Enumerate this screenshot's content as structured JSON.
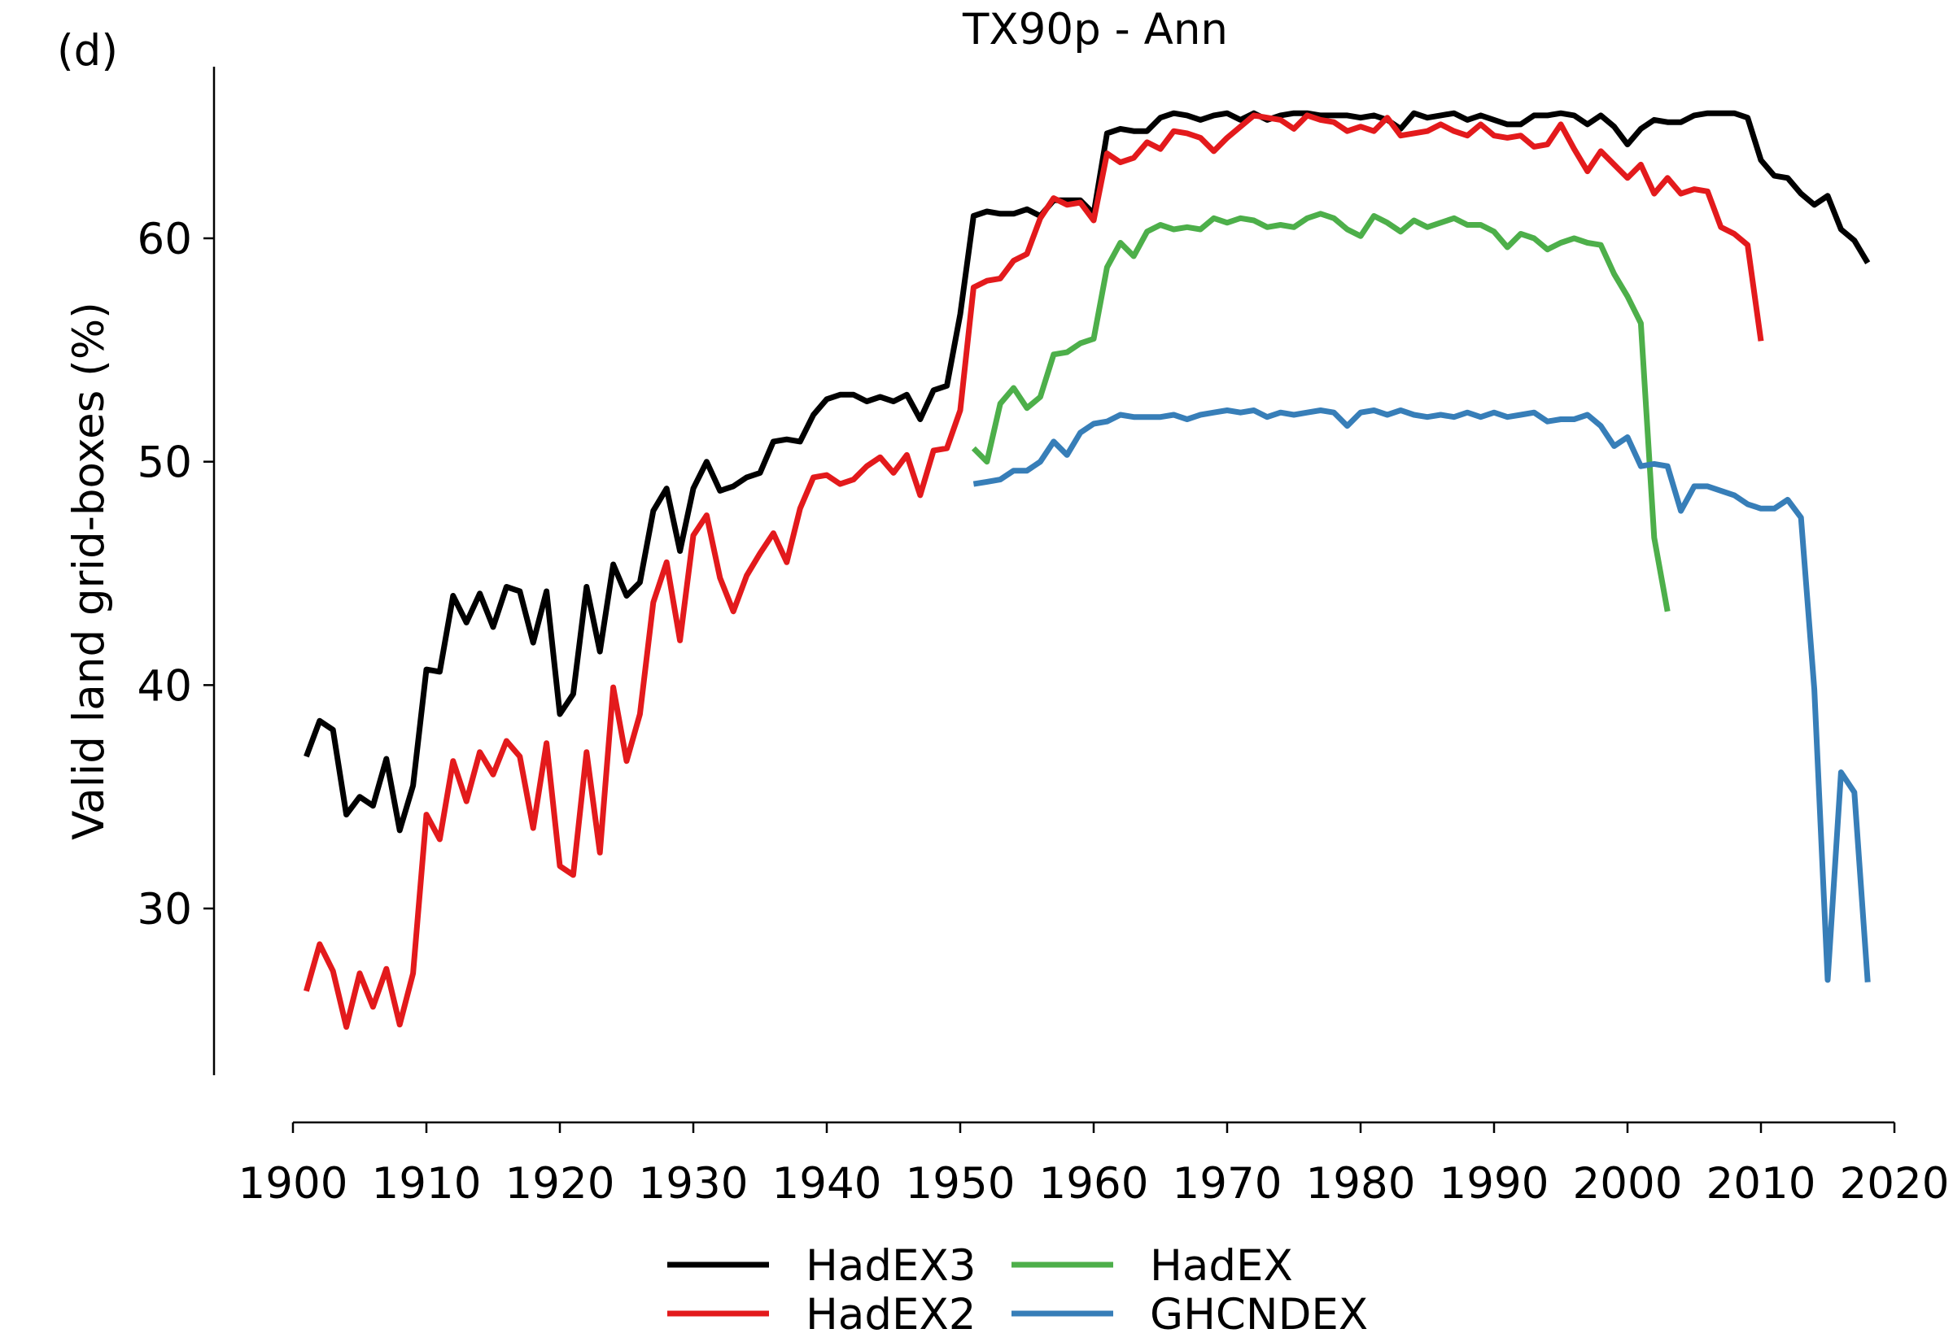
{
  "panel_label": "(d)",
  "chart_data": {
    "type": "line",
    "title": "TX90p - Ann",
    "xlabel": "",
    "ylabel": "Valid land grid-boxes (%)",
    "xlim": [
      1894,
      2020
    ],
    "ylim": [
      22.5,
      67.5
    ],
    "xticks": [
      1900,
      1910,
      1920,
      1930,
      1940,
      1950,
      1960,
      1970,
      1980,
      1990,
      2000,
      2010,
      2020
    ],
    "yticks": [
      30,
      40,
      50,
      60
    ],
    "grid": false,
    "legend": {
      "placement": "bottom-center",
      "columns": 2
    },
    "series": [
      {
        "name": "HadEX3",
        "color": "#000000",
        "x_start": 1901,
        "values": [
          36.8,
          38.4,
          38.0,
          34.2,
          35.0,
          34.6,
          36.7,
          33.5,
          35.5,
          40.7,
          40.6,
          44.0,
          42.8,
          44.1,
          42.6,
          44.4,
          44.2,
          41.9,
          44.2,
          38.7,
          39.6,
          44.4,
          41.5,
          45.4,
          44.0,
          44.6,
          47.8,
          48.8,
          46.0,
          48.8,
          50.0,
          48.7,
          48.9,
          49.3,
          49.5,
          50.9,
          51.0,
          50.9,
          52.1,
          52.8,
          53.0,
          53.0,
          52.7,
          52.9,
          52.7,
          53.0,
          51.9,
          53.2,
          53.4,
          56.6,
          61.0,
          61.2,
          61.1,
          61.1,
          61.3,
          61.0,
          61.7,
          61.7,
          61.7,
          61.1,
          64.7,
          64.9,
          64.8,
          64.8,
          65.4,
          65.6,
          65.5,
          65.3,
          65.5,
          65.6,
          65.3,
          65.6,
          65.3,
          65.5,
          65.6,
          65.6,
          65.5,
          65.5,
          65.5,
          65.4,
          65.5,
          65.3,
          64.9,
          65.6,
          65.4,
          65.5,
          65.6,
          65.3,
          65.5,
          65.3,
          65.1,
          65.1,
          65.5,
          65.5,
          65.6,
          65.5,
          65.1,
          65.5,
          65.0,
          64.2,
          64.9,
          65.3,
          65.2,
          65.2,
          65.5,
          65.6,
          65.6,
          65.6,
          65.4,
          63.5,
          62.8,
          62.7,
          62.0,
          61.5,
          61.9,
          60.4,
          59.9,
          58.9
        ]
      },
      {
        "name": "HadEX2",
        "color": "#e31a1c",
        "x_start": 1901,
        "values": [
          26.3,
          28.4,
          27.2,
          24.7,
          27.1,
          25.6,
          27.3,
          24.8,
          27.1,
          34.2,
          33.1,
          36.6,
          34.8,
          37.0,
          36.0,
          37.5,
          36.8,
          33.6,
          37.4,
          31.9,
          31.5,
          37.0,
          32.5,
          39.9,
          36.6,
          38.7,
          43.7,
          45.5,
          42.0,
          46.7,
          47.6,
          44.8,
          43.3,
          44.9,
          45.9,
          46.8,
          45.5,
          47.9,
          49.3,
          49.4,
          49.0,
          49.2,
          49.8,
          50.2,
          49.5,
          50.3,
          48.5,
          50.5,
          50.6,
          52.3,
          57.8,
          58.1,
          58.2,
          59.0,
          59.3,
          60.9,
          61.8,
          61.5,
          61.6,
          60.8,
          63.8,
          63.4,
          63.6,
          64.3,
          64.0,
          64.8,
          64.7,
          64.5,
          63.9,
          64.5,
          65.0,
          65.5,
          65.4,
          65.3,
          64.9,
          65.5,
          65.3,
          65.2,
          64.8,
          65.0,
          64.8,
          65.4,
          64.6,
          64.7,
          64.8,
          65.1,
          64.8,
          64.6,
          65.1,
          64.6,
          64.5,
          64.6,
          64.1,
          64.2,
          65.1,
          64.0,
          63.0,
          63.9,
          63.3,
          62.7,
          63.3,
          62.0,
          62.7,
          62.0,
          62.2,
          62.1,
          60.5,
          60.2,
          59.7,
          55.4
        ]
      },
      {
        "name": "HadEX",
        "color": "#4daf4a",
        "x_start": 1951,
        "values": [
          50.6,
          50.0,
          52.6,
          53.3,
          52.4,
          52.9,
          54.8,
          54.9,
          55.3,
          55.5,
          58.7,
          59.8,
          59.2,
          60.3,
          60.6,
          60.4,
          60.5,
          60.4,
          60.9,
          60.7,
          60.9,
          60.8,
          60.5,
          60.6,
          60.5,
          60.9,
          61.1,
          60.9,
          60.4,
          60.1,
          61.0,
          60.7,
          60.3,
          60.8,
          60.5,
          60.7,
          60.9,
          60.6,
          60.6,
          60.3,
          59.6,
          60.2,
          60.0,
          59.5,
          59.8,
          60.0,
          59.8,
          59.7,
          58.4,
          57.4,
          56.2,
          46.6,
          43.3
        ]
      },
      {
        "name": "GHCNDEX",
        "color": "#377eb8",
        "x_start": 1951,
        "values": [
          49.0,
          49.1,
          49.2,
          49.6,
          49.6,
          50.0,
          50.9,
          50.3,
          51.3,
          51.7,
          51.8,
          52.1,
          52.0,
          52.0,
          52.0,
          52.1,
          51.9,
          52.1,
          52.2,
          52.3,
          52.2,
          52.3,
          52.0,
          52.2,
          52.1,
          52.2,
          52.3,
          52.2,
          51.6,
          52.2,
          52.3,
          52.1,
          52.3,
          52.1,
          52.0,
          52.1,
          52.0,
          52.2,
          52.0,
          52.2,
          52.0,
          52.1,
          52.2,
          51.8,
          51.9,
          51.9,
          52.1,
          51.6,
          50.7,
          51.1,
          49.8,
          49.9,
          49.8,
          47.8,
          48.9,
          48.9,
          48.7,
          48.5,
          48.1,
          47.9,
          47.9,
          48.3,
          47.5,
          39.8,
          26.8,
          36.1,
          35.2,
          26.7
        ]
      }
    ]
  }
}
